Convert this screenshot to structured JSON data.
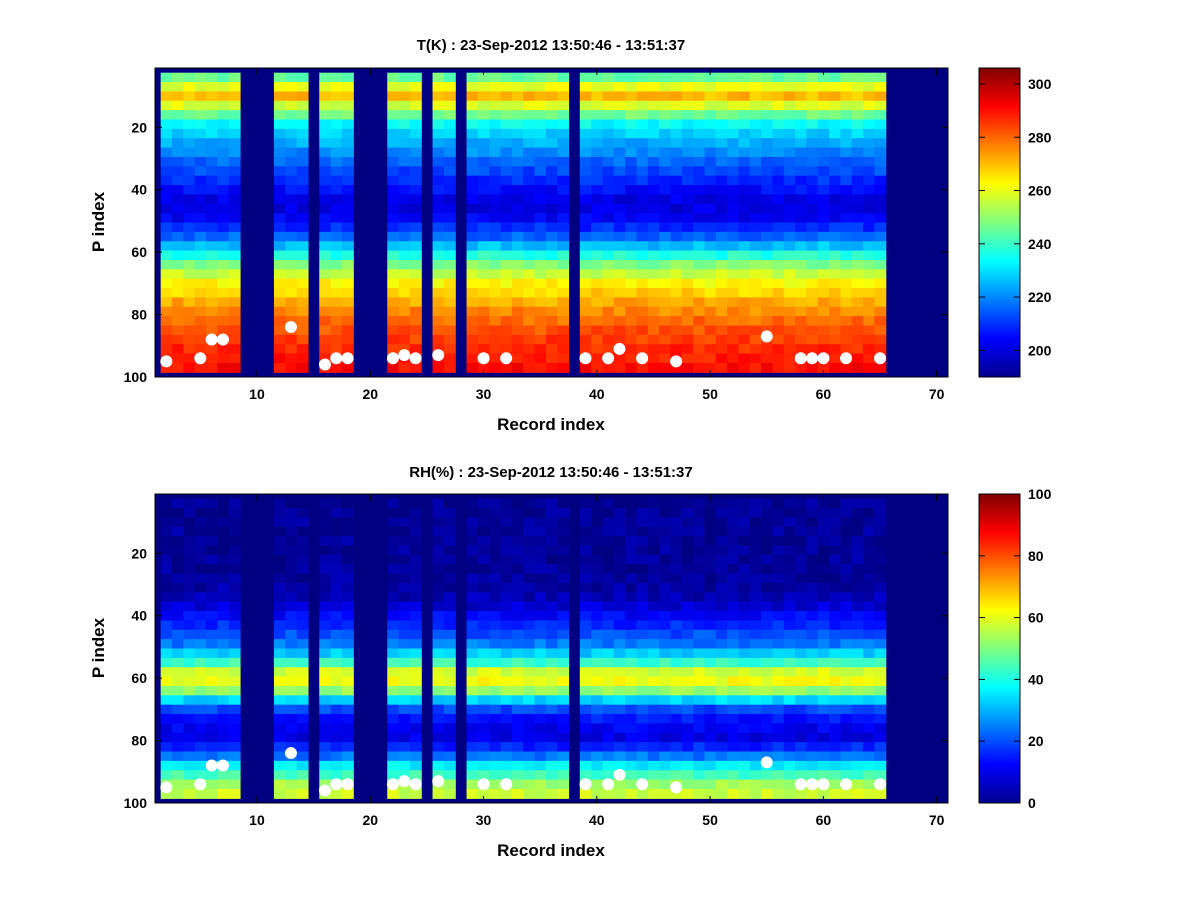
{
  "chart_data": [
    {
      "type": "heatmap",
      "title": "T(K) : 23-Sep-2012 13:50:46 - 13:51:37",
      "xlabel": "Record index",
      "ylabel": "P index",
      "xlim": [
        1,
        71
      ],
      "ylim": [
        100,
        1
      ],
      "y_reversed": true,
      "x_ticks": [
        10,
        20,
        30,
        40,
        50,
        60,
        70
      ],
      "y_ticks": [
        20,
        40,
        60,
        80,
        100
      ],
      "colormap": "jet",
      "clim": [
        190,
        306
      ],
      "colorbar_ticks": [
        200,
        220,
        240,
        260,
        280,
        300
      ],
      "fill_value": 190,
      "valid_p_range": [
        3,
        98
      ],
      "valid_records": [
        2,
        3,
        4,
        5,
        6,
        7,
        8,
        12,
        13,
        14,
        16,
        17,
        18,
        22,
        23,
        24,
        26,
        27,
        29,
        30,
        31,
        32,
        33,
        34,
        35,
        36,
        37,
        39,
        40,
        41,
        42,
        43,
        44,
        45,
        46,
        47,
        48,
        49,
        50,
        51,
        52,
        53,
        54,
        55,
        56,
        57,
        58,
        59,
        60,
        61,
        62,
        63,
        64,
        65
      ],
      "profile_p": [
        3,
        10,
        20,
        30,
        40,
        45,
        50,
        55,
        60,
        65,
        70,
        75,
        80,
        85,
        90,
        95,
        98
      ],
      "profile_values": [
        238,
        272,
        232,
        218,
        206,
        200,
        204,
        214,
        232,
        250,
        262,
        270,
        277,
        282,
        286,
        289,
        291
      ],
      "surface_p_levels": [
        [
          2,
          95
        ],
        [
          5,
          94
        ],
        [
          6,
          88
        ],
        [
          7,
          88
        ],
        [
          13,
          84
        ],
        [
          16,
          96
        ],
        [
          17,
          94
        ],
        [
          18,
          94
        ],
        [
          22,
          94
        ],
        [
          23,
          93
        ],
        [
          24,
          94
        ],
        [
          26,
          93
        ],
        [
          30,
          94
        ],
        [
          32,
          94
        ],
        [
          39,
          94
        ],
        [
          41,
          94
        ],
        [
          42,
          91
        ],
        [
          44,
          94
        ],
        [
          47,
          95
        ],
        [
          55,
          87
        ],
        [
          58,
          94
        ],
        [
          59,
          94
        ],
        [
          60,
          94
        ],
        [
          62,
          94
        ],
        [
          65,
          94
        ]
      ]
    },
    {
      "type": "heatmap",
      "title": "RH(%) : 23-Sep-2012 13:50:46 - 13:51:37",
      "xlabel": "Record index",
      "ylabel": "P index",
      "xlim": [
        1,
        71
      ],
      "ylim": [
        100,
        1
      ],
      "y_reversed": true,
      "x_ticks": [
        10,
        20,
        30,
        40,
        50,
        60,
        70
      ],
      "y_ticks": [
        20,
        40,
        60,
        80,
        100
      ],
      "colormap": "jet",
      "clim": [
        0,
        100
      ],
      "colorbar_ticks": [
        0,
        20,
        40,
        60,
        80,
        100
      ],
      "fill_value": 0,
      "valid_p_range": [
        3,
        98
      ],
      "valid_records": [
        2,
        3,
        4,
        5,
        6,
        7,
        8,
        12,
        13,
        14,
        16,
        17,
        18,
        22,
        23,
        24,
        26,
        27,
        29,
        30,
        31,
        32,
        33,
        34,
        35,
        36,
        37,
        39,
        40,
        41,
        42,
        43,
        44,
        45,
        46,
        47,
        48,
        49,
        50,
        51,
        52,
        53,
        54,
        55,
        56,
        57,
        58,
        59,
        60,
        61,
        62,
        63,
        64,
        65
      ],
      "profile_p": [
        3,
        30,
        36,
        40,
        45,
        50,
        55,
        58,
        62,
        65,
        68,
        70,
        75,
        80,
        85,
        88,
        92,
        95,
        98
      ],
      "profile_values": [
        2,
        3,
        6,
        12,
        18,
        25,
        40,
        58,
        62,
        50,
        30,
        20,
        12,
        10,
        22,
        35,
        45,
        55,
        58
      ],
      "surface_p_levels": [
        [
          2,
          95
        ],
        [
          5,
          94
        ],
        [
          6,
          88
        ],
        [
          7,
          88
        ],
        [
          13,
          84
        ],
        [
          16,
          96
        ],
        [
          17,
          94
        ],
        [
          18,
          94
        ],
        [
          22,
          94
        ],
        [
          23,
          93
        ],
        [
          24,
          94
        ],
        [
          26,
          93
        ],
        [
          30,
          94
        ],
        [
          32,
          94
        ],
        [
          39,
          94
        ],
        [
          41,
          94
        ],
        [
          42,
          91
        ],
        [
          44,
          94
        ],
        [
          47,
          95
        ],
        [
          55,
          87
        ],
        [
          58,
          94
        ],
        [
          59,
          94
        ],
        [
          60,
          94
        ],
        [
          62,
          94
        ],
        [
          65,
          94
        ]
      ]
    }
  ]
}
